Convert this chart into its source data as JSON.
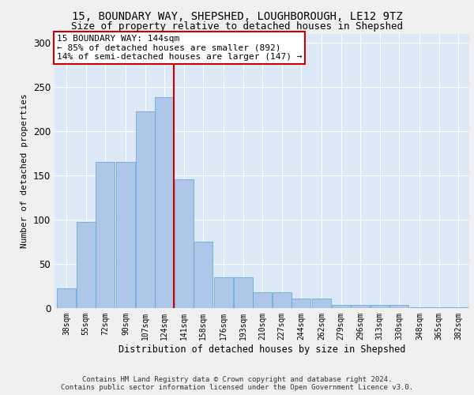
{
  "title1": "15, BOUNDARY WAY, SHEPSHED, LOUGHBOROUGH, LE12 9TZ",
  "title2": "Size of property relative to detached houses in Shepshed",
  "xlabel": "Distribution of detached houses by size in Shepshed",
  "ylabel": "Number of detached properties",
  "footer1": "Contains HM Land Registry data © Crown copyright and database right 2024.",
  "footer2": "Contains public sector information licensed under the Open Government Licence v3.0.",
  "bar_left_edges": [
    38,
    55,
    72,
    90,
    107,
    124,
    141,
    158,
    176,
    193,
    210,
    227,
    244,
    262,
    279,
    296,
    313,
    330,
    348,
    365,
    382
  ],
  "bar_widths": [
    17,
    17,
    17,
    17,
    17,
    17,
    17,
    17,
    17,
    17,
    17,
    17,
    17,
    17,
    17,
    17,
    17,
    17,
    17,
    17,
    17
  ],
  "bar_heights": [
    22,
    97,
    165,
    165,
    222,
    238,
    145,
    75,
    35,
    35,
    18,
    18,
    11,
    11,
    4,
    4,
    4,
    4,
    1,
    1,
    1
  ],
  "tick_labels": [
    "38sqm",
    "55sqm",
    "72sqm",
    "90sqm",
    "107sqm",
    "124sqm",
    "141sqm",
    "158sqm",
    "176sqm",
    "193sqm",
    "210sqm",
    "227sqm",
    "244sqm",
    "262sqm",
    "279sqm",
    "296sqm",
    "313sqm",
    "330sqm",
    "348sqm",
    "365sqm",
    "382sqm"
  ],
  "bar_color": "#aec6e8",
  "bar_edgecolor": "#5a9fd4",
  "vline_x": 141,
  "vline_color": "#cc0000",
  "annotation_text": "15 BOUNDARY WAY: 144sqm\n← 85% of detached houses are smaller (892)\n14% of semi-detached houses are larger (147) →",
  "annotation_box_color": "#cc0000",
  "ylim": [
    0,
    310
  ],
  "xlim_left": 36,
  "xlim_right": 400,
  "plot_background": "#dce8f5",
  "fig_background": "#f0f0f0",
  "grid_color": "#ffffff",
  "title1_fontsize": 10,
  "title2_fontsize": 9,
  "xlabel_fontsize": 8.5,
  "ylabel_fontsize": 8,
  "tick_fontsize": 7,
  "annotation_fontsize": 8,
  "footer_fontsize": 6.5,
  "ytick_labels": [
    0,
    50,
    100,
    150,
    200,
    250,
    300
  ]
}
